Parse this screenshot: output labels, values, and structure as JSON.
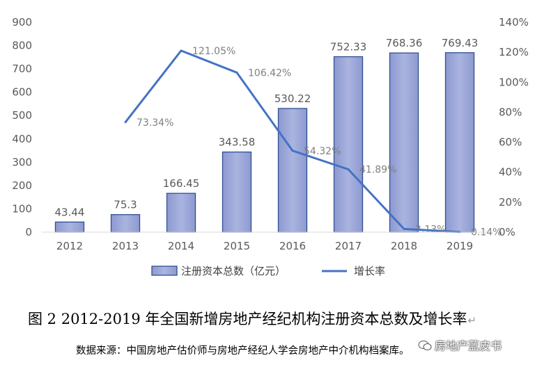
{
  "chart_data": {
    "type": "bar",
    "categories": [
      "2012",
      "2013",
      "2014",
      "2015",
      "2016",
      "2017",
      "2018",
      "2019"
    ],
    "series": [
      {
        "name": "注册资本总数（亿元）",
        "type": "bar",
        "axis": "left",
        "values": [
          43.44,
          75.3,
          166.45,
          343.58,
          530.22,
          752.33,
          768.36,
          769.43
        ],
        "labels": [
          "43.44",
          "75.3",
          "166.45",
          "343.58",
          "530.22",
          "752.33",
          "768.36",
          "769.43"
        ],
        "color": "#9aa6d6"
      },
      {
        "name": "增长率",
        "type": "line",
        "axis": "right",
        "values": [
          null,
          73.34,
          121.05,
          106.42,
          54.32,
          41.89,
          2.13,
          0.14
        ],
        "labels": [
          "",
          "73.34%",
          "121.05%",
          "106.42%",
          "54.32%",
          "41.89%",
          "2.13%",
          "0.14%"
        ],
        "color": "#4472c4"
      }
    ],
    "y_left": {
      "min": 0,
      "max": 900,
      "ticks": [
        "0",
        "100",
        "200",
        "300",
        "400",
        "500",
        "600",
        "700",
        "800",
        "900"
      ]
    },
    "y_right": {
      "min": 0,
      "max": 140,
      "ticks": [
        "0%",
        "20%",
        "40%",
        "60%",
        "80%",
        "100%",
        "120%",
        "140%"
      ]
    },
    "grid": false,
    "legend_position": "bottom"
  },
  "caption": {
    "title": "图 2  2012-2019 年全国新增房地产经纪机构注册资本总数及增长率",
    "mark": "↵"
  },
  "source": "数据来源：中国房地产估价师与房地产经纪人学会房地产中介机构档案库。",
  "watermark": "房地产蓝皮书"
}
